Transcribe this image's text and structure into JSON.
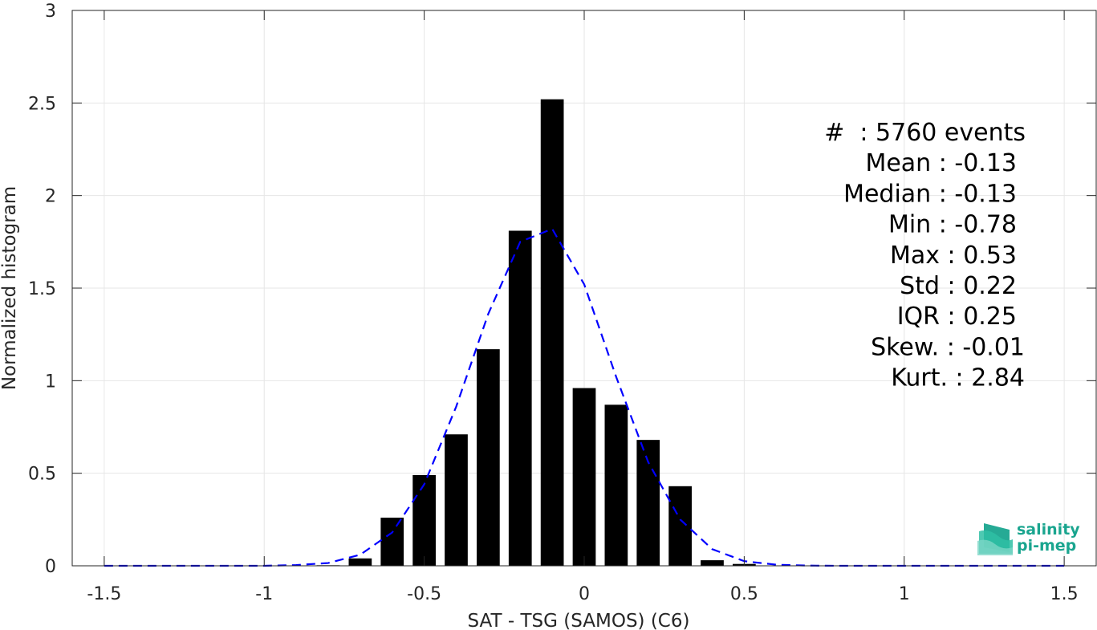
{
  "chart_data": {
    "type": "bar",
    "title": "",
    "xlabel": "SAT - TSG (SAMOS) (C6)",
    "ylabel": "Normalized histogram",
    "xlim": [
      -1.6,
      1.6
    ],
    "ylim": [
      0,
      3
    ],
    "grid": true,
    "x_ticks": [
      -1.5,
      -1,
      -0.5,
      0,
      0.5,
      1,
      1.5
    ],
    "x_tick_labels": [
      "-1.5",
      "-1",
      "-0.5",
      "0",
      "0.5",
      "1",
      "1.5"
    ],
    "y_ticks": [
      0,
      0.5,
      1,
      1.5,
      2,
      2.5,
      3
    ],
    "y_tick_labels": [
      "0",
      "0.5",
      "1",
      "1.5",
      "2",
      "2.5",
      "3"
    ],
    "bin_width": 0.1,
    "series": [
      {
        "kind": "bar",
        "color": "#000000",
        "x": [
          -0.8,
          -0.7,
          -0.6,
          -0.5,
          -0.4,
          -0.3,
          -0.2,
          -0.1,
          0.0,
          0.1,
          0.2,
          0.3,
          0.4,
          0.5
        ],
        "values": [
          0.003,
          0.04,
          0.26,
          0.49,
          0.71,
          1.17,
          1.81,
          2.52,
          0.96,
          0.87,
          0.68,
          0.43,
          0.03,
          0.01
        ]
      },
      {
        "kind": "line",
        "style": "dashed",
        "color": "#0000ff",
        "x": [
          -1.5,
          -1.4,
          -1.3,
          -1.2,
          -1.1,
          -1.0,
          -0.9,
          -0.8,
          -0.7,
          -0.6,
          -0.5,
          -0.4,
          -0.3,
          -0.2,
          -0.1,
          0.0,
          0.1,
          0.2,
          0.3,
          0.4,
          0.5,
          0.6,
          0.7,
          0.8,
          0.9,
          1.0,
          1.1,
          1.2,
          1.3,
          1.4,
          1.5
        ],
        "values": [
          0,
          0,
          0,
          0,
          0,
          0,
          0.004,
          0.015,
          0.06,
          0.18,
          0.44,
          0.86,
          1.36,
          1.75,
          1.82,
          1.52,
          1.02,
          0.56,
          0.25,
          0.09,
          0.025,
          0.006,
          0.001,
          0,
          0,
          0,
          0,
          0,
          0,
          0,
          0
        ]
      }
    ],
    "stats": [
      "#  : 5760 events",
      "Mean : -0.13",
      "Median : -0.13",
      "Min : -0.78",
      "Max : 0.53",
      "Std : 0.22",
      "IQR : 0.25",
      "Skew. : -0.01",
      "Kurt. : 2.84"
    ]
  },
  "logo": {
    "line1": "salinity",
    "line2": "pi-mep"
  },
  "colors": {
    "bars": "#000000",
    "fit_line": "#0000ff",
    "grid": "#e6e6e6",
    "axis": "#262626",
    "logo_accent": "#1aa58f"
  }
}
